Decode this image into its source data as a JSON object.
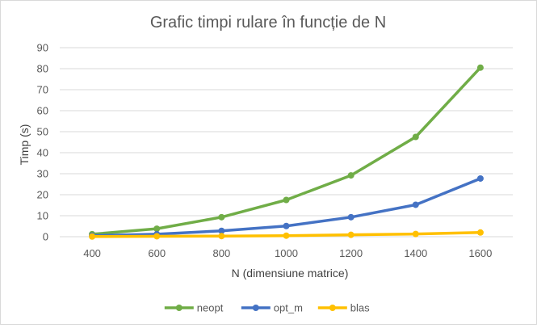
{
  "chart_data": {
    "type": "line",
    "title": "Grafic timpi rulare în funcție de N",
    "xlabel": "N (dimensiune matrice)",
    "ylabel": "Timp (s)",
    "categories": [
      "400",
      "600",
      "800",
      "1000",
      "1200",
      "1400",
      "1600"
    ],
    "ylim": [
      0,
      90
    ],
    "yticks": [
      0,
      10,
      20,
      30,
      40,
      50,
      60,
      70,
      80,
      90
    ],
    "grid": true,
    "legend_position": "bottom",
    "series": [
      {
        "name": "neopt",
        "color": "#70AD47",
        "values": [
          1.2,
          3.8,
          9.3,
          17.5,
          29.2,
          47.5,
          80.5
        ]
      },
      {
        "name": "opt_m",
        "color": "#4472C4",
        "values": [
          0.5,
          1.2,
          2.8,
          5.1,
          9.3,
          15.2,
          27.7
        ]
      },
      {
        "name": "blas",
        "color": "#FFC000",
        "values": [
          0.1,
          0.2,
          0.3,
          0.5,
          0.9,
          1.3,
          2.0
        ]
      }
    ]
  }
}
